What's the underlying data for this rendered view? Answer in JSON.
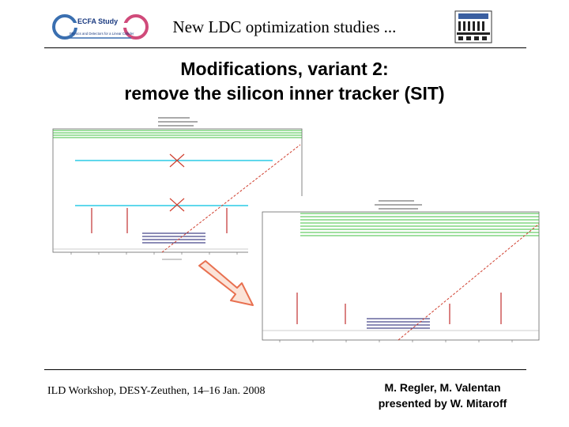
{
  "header": {
    "title": "New LDC optimization studies ..."
  },
  "logo_left": {
    "text_main": "ECFA Study",
    "text_sub": "Physics and Detectors for a Linear Collider",
    "colors": {
      "ring_left": "#3a6fb0",
      "ring_right": "#d04a7a",
      "text": "#1a3a80"
    }
  },
  "logo_right": {
    "icon": "institute-emblem-icon"
  },
  "slide": {
    "title_line1": "Modifications, variant 2:",
    "title_line2": "remove the silicon inner tracker (SIT)"
  },
  "figures": {
    "arrow_color": "#e87050",
    "plot_line_colors": {
      "cyan": "#00c0e0",
      "green": "#40c040",
      "red_dashed": "#d04030",
      "red": "#c03030",
      "navy": "#1a1a6e",
      "cross": "#d04030"
    }
  },
  "footer": {
    "left": "ILD Workshop, DESY-Zeuthen, 14–16 Jan. 2008",
    "right_line1": "M. Regler, M. Valentan",
    "right_line2": "presented by W. Mitaroff"
  }
}
